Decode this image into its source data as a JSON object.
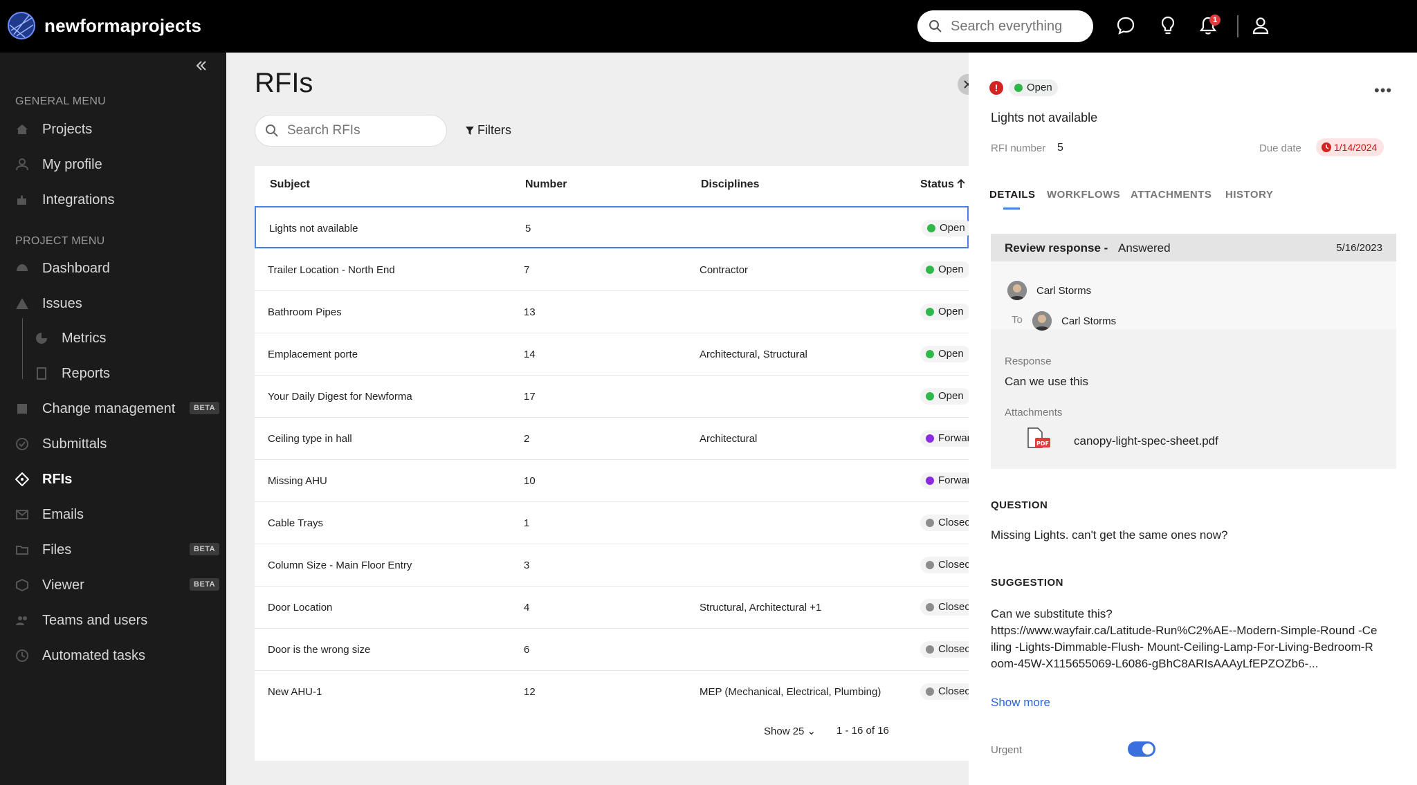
{
  "app": {
    "brand": "newformaprojects"
  },
  "topbar": {
    "search_placeholder": "Search everything",
    "notification_count": "1"
  },
  "sidebar": {
    "general_header": "GENERAL MENU",
    "general_items": [
      {
        "label": "Projects",
        "icon": "house-icon"
      },
      {
        "label": "My profile",
        "icon": "user-icon"
      },
      {
        "label": "Integrations",
        "icon": "puzzle-icon"
      }
    ],
    "project_header": "PROJECT MENU",
    "project_items": [
      {
        "label": "Dashboard",
        "icon": "dashboard-icon"
      },
      {
        "label": "Issues",
        "icon": "warning-icon"
      },
      {
        "label": "Metrics",
        "icon": "pie-chart-icon"
      },
      {
        "label": "Reports",
        "icon": "report-icon"
      },
      {
        "label": "Change management",
        "icon": "change-icon",
        "badge": "BETA"
      },
      {
        "label": "Submittals",
        "icon": "check-circle-icon"
      },
      {
        "label": "RFIs",
        "icon": "rfi-icon"
      },
      {
        "label": "Emails",
        "icon": "mail-icon"
      },
      {
        "label": "Files",
        "icon": "folder-icon",
        "badge": "BETA"
      },
      {
        "label": "Viewer",
        "icon": "cube-icon",
        "badge": "BETA"
      },
      {
        "label": "Teams and users",
        "icon": "team-icon"
      },
      {
        "label": "Automated tasks",
        "icon": "clock-icon"
      }
    ]
  },
  "main": {
    "title": "RFIs",
    "search_placeholder": "Search RFIs",
    "filters_label": "Filters",
    "columns": {
      "subject": "Subject",
      "number": "Number",
      "disciplines": "Disciplines",
      "status": "Status"
    },
    "rows": [
      {
        "subject": "Lights not available",
        "number": "5",
        "disciplines": "",
        "status": "Open"
      },
      {
        "subject": "Trailer Location - North End",
        "number": "7",
        "disciplines": "Contractor",
        "status": "Open"
      },
      {
        "subject": "Bathroom Pipes",
        "number": "13",
        "disciplines": "",
        "status": "Open"
      },
      {
        "subject": "Emplacement porte",
        "number": "14",
        "disciplines": "Architectural, Structural",
        "status": "Open"
      },
      {
        "subject": "Your Daily Digest for Newforma",
        "number": "17",
        "disciplines": "",
        "status": "Open"
      },
      {
        "subject": "Ceiling type in hall",
        "number": "2",
        "disciplines": "Architectural",
        "status": "Forwar"
      },
      {
        "subject": "Missing AHU",
        "number": "10",
        "disciplines": "",
        "status": "Forwar"
      },
      {
        "subject": "Cable Trays",
        "number": "1",
        "disciplines": "",
        "status": "Closec"
      },
      {
        "subject": "Column Size - Main Floor Entry",
        "number": "3",
        "disciplines": "",
        "status": "Closec"
      },
      {
        "subject": "Door Location",
        "number": "4",
        "disciplines": "Structural, Architectural +1",
        "status": "Closec"
      },
      {
        "subject": "Door is the wrong size",
        "number": "6",
        "disciplines": "",
        "status": "Closec"
      },
      {
        "subject": "New AHU-1",
        "number": "12",
        "disciplines": "MEP (Mechanical, Electrical, Plumbing)",
        "status": "Closec"
      }
    ],
    "pagination": {
      "show": "Show 25",
      "range": "1 - 16 of 16"
    }
  },
  "panel": {
    "status": "Open",
    "title": "Lights not available",
    "rfi_number_label": "RFI number",
    "rfi_number": "5",
    "due_date_label": "Due date",
    "due_date": "1/14/2024",
    "tabs": [
      "DETAILS",
      "WORKFLOWS",
      "ATTACHMENTS",
      "HISTORY"
    ],
    "review": {
      "title": "Review response -",
      "state": "Answered",
      "date": "5/16/2023",
      "from": "Carl Storms",
      "to_label": "To",
      "to": "Carl Storms",
      "response_label": "Response",
      "response": "Can we use this",
      "attachments_label": "Attachments",
      "attachment": "canopy-light-spec-sheet.pdf"
    },
    "question_header": "QUESTION",
    "question": "Missing Lights. can't get the same ones now?",
    "suggestion_header": "SUGGESTION",
    "suggestion": "Can we substitute this?\nhttps://www.wayfair.ca/Latitude-Run%C2%AE--Modern-Simple-Round -Ceiling -Lights-Dimmable-Flush- Mount-Ceiling-Lamp-For-Living-Bedroom-Room-45W-X115655069-L6086-gBhC8ARIsAAAyLfEPZOZb6-...",
    "show_more": "Show more",
    "urgent_label": "Urgent"
  },
  "colors": {
    "open": "#2fb84a",
    "forwarded": "#8a2be2",
    "closed": "#8c8c8c",
    "accent": "#4a7fe3",
    "danger": "#d32424"
  }
}
